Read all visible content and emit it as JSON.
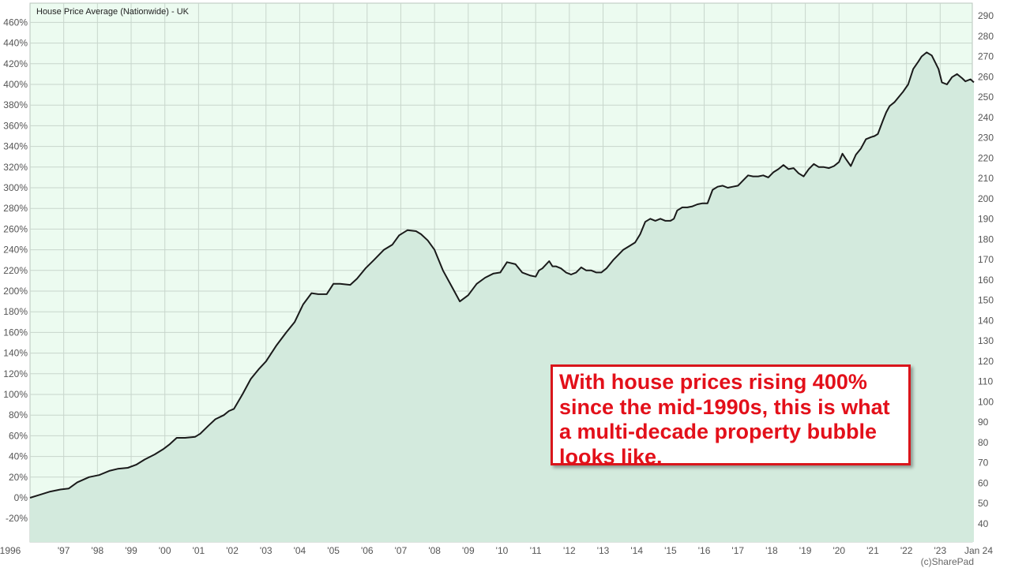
{
  "chart_data": {
    "type": "area",
    "title": "House Price Average (Nationwide) - UK",
    "credit": "(c)SharePad",
    "x_tick_labels": [
      "1996",
      "'97",
      "'98",
      "'99",
      "'00",
      "'01",
      "'02",
      "'03",
      "'04",
      "'05",
      "'06",
      "'07",
      "'08",
      "'09",
      "'10",
      "'11",
      "'12",
      "'13",
      "'14",
      "'15",
      "'16",
      "'17",
      "'18",
      "'19",
      "'20",
      "'21",
      "'22",
      "'23",
      "Jan 24"
    ],
    "left_axis_labels": [
      "460%",
      "440%",
      "420%",
      "400%",
      "380%",
      "360%",
      "340%",
      "320%",
      "300%",
      "280%",
      "260%",
      "240%",
      "220%",
      "200%",
      "180%",
      "160%",
      "140%",
      "120%",
      "100%",
      "80%",
      "60%",
      "40%",
      "20%",
      "0%",
      "-20%"
    ],
    "right_axis_labels": [
      "290",
      "280",
      "270",
      "260",
      "250",
      "240",
      "230",
      "220",
      "210",
      "200",
      "190",
      "180",
      "170",
      "160",
      "150",
      "140",
      "130",
      "120",
      "110",
      "100",
      "90",
      "80",
      "70",
      "60",
      "50",
      "40"
    ],
    "ylim_percent": [
      -40,
      470
    ],
    "xlim": [
      1996.0,
      2024.0
    ],
    "grid": true,
    "colors": {
      "line": "#1a1a1a",
      "area_fill": "#d3eadd",
      "plot_background": "#ecfbf0",
      "grid": "#c8d6cc",
      "annotation": "#e3101a"
    },
    "series": [
      {
        "x": [
          1996.0,
          1996.3,
          1996.6,
          1996.9,
          1997.15,
          1997.4,
          1997.75,
          1998.05,
          1998.35,
          1998.6,
          1998.9,
          1999.15,
          1999.4,
          1999.7,
          1999.95,
          2000.15,
          2000.35,
          2000.6,
          2000.9,
          2001.05,
          2001.3,
          2001.5,
          2001.75,
          2001.9,
          2002.05,
          2002.3,
          2002.55,
          2002.8,
          2003.0,
          2003.3,
          2003.6,
          2003.85,
          2004.1,
          2004.35,
          2004.55,
          2004.8,
          2005.0,
          2005.2,
          2005.5,
          2005.7,
          2005.95,
          2006.2,
          2006.5,
          2006.75,
          2006.95,
          2007.2,
          2007.45,
          2007.6,
          2007.8,
          2008.0,
          2008.25,
          2008.5,
          2008.75,
          2009.0,
          2009.25,
          2009.5,
          2009.75,
          2009.95,
          2010.15,
          2010.4,
          2010.6,
          2010.85,
          2011.0,
          2011.1,
          2011.2,
          2011.4,
          2011.5,
          2011.6,
          2011.75,
          2011.9,
          2012.05,
          2012.2,
          2012.35,
          2012.5,
          2012.65,
          2012.8,
          2012.95,
          2013.1,
          2013.3,
          2013.45,
          2013.6,
          2013.8,
          2013.95,
          2014.1,
          2014.25,
          2014.4,
          2014.55,
          2014.7,
          2014.85,
          2015.0,
          2015.1,
          2015.2,
          2015.35,
          2015.5,
          2015.65,
          2015.8,
          2015.95,
          2016.1,
          2016.25,
          2016.4,
          2016.55,
          2016.7,
          2016.85,
          2017.0,
          2017.15,
          2017.3,
          2017.45,
          2017.6,
          2017.75,
          2017.9,
          2018.05,
          2018.2,
          2018.35,
          2018.5,
          2018.65,
          2018.8,
          2018.95,
          2019.1,
          2019.25,
          2019.4,
          2019.55,
          2019.7,
          2019.85,
          2020.0,
          2020.1,
          2020.2,
          2020.35,
          2020.5,
          2020.65,
          2020.8,
          2020.95,
          2021.05,
          2021.15,
          2021.3,
          2021.4,
          2021.5,
          2021.65,
          2021.75,
          2021.9,
          2022.05,
          2022.2,
          2022.35,
          2022.45,
          2022.6,
          2022.75,
          2022.95,
          2023.05,
          2023.2,
          2023.35,
          2023.5,
          2023.65,
          2023.75,
          2023.9,
          2024.0
        ],
        "y": [
          0,
          3,
          6,
          8,
          9,
          15,
          20,
          22,
          26,
          28,
          29,
          32,
          37,
          42,
          47,
          52,
          58,
          58,
          59,
          62,
          70,
          76,
          80,
          84,
          86,
          100,
          115,
          125,
          132,
          147,
          160,
          170,
          187,
          198,
          197,
          197,
          207,
          207,
          206,
          212,
          222,
          230,
          240,
          245,
          254,
          259,
          258,
          255,
          249,
          240,
          220,
          205,
          190,
          196,
          207,
          213,
          217,
          218,
          228,
          226,
          218,
          215,
          214,
          220,
          222,
          229,
          224,
          224,
          222,
          218,
          216,
          218,
          223,
          220,
          220,
          218,
          218,
          222,
          230,
          235,
          240,
          244,
          247,
          255,
          267,
          270,
          268,
          270,
          268,
          268,
          270,
          278,
          281,
          281,
          282,
          284,
          285,
          285,
          298,
          301,
          302,
          300,
          301,
          302,
          307,
          312,
          311,
          311,
          312,
          310,
          315,
          318,
          322,
          318,
          319,
          314,
          311,
          318,
          323,
          320,
          320,
          319,
          321,
          325,
          333,
          328,
          321,
          332,
          338,
          347,
          349,
          350,
          352,
          365,
          373,
          379,
          383,
          387,
          393,
          400,
          415,
          422,
          427,
          431,
          428,
          415,
          402,
          400,
          407,
          410,
          406,
          403,
          405,
          402
        ]
      }
    ]
  },
  "annotation": {
    "text": "With house prices rising 400% since the mid-1990s, this is what a multi-decade property bubble looks like."
  }
}
